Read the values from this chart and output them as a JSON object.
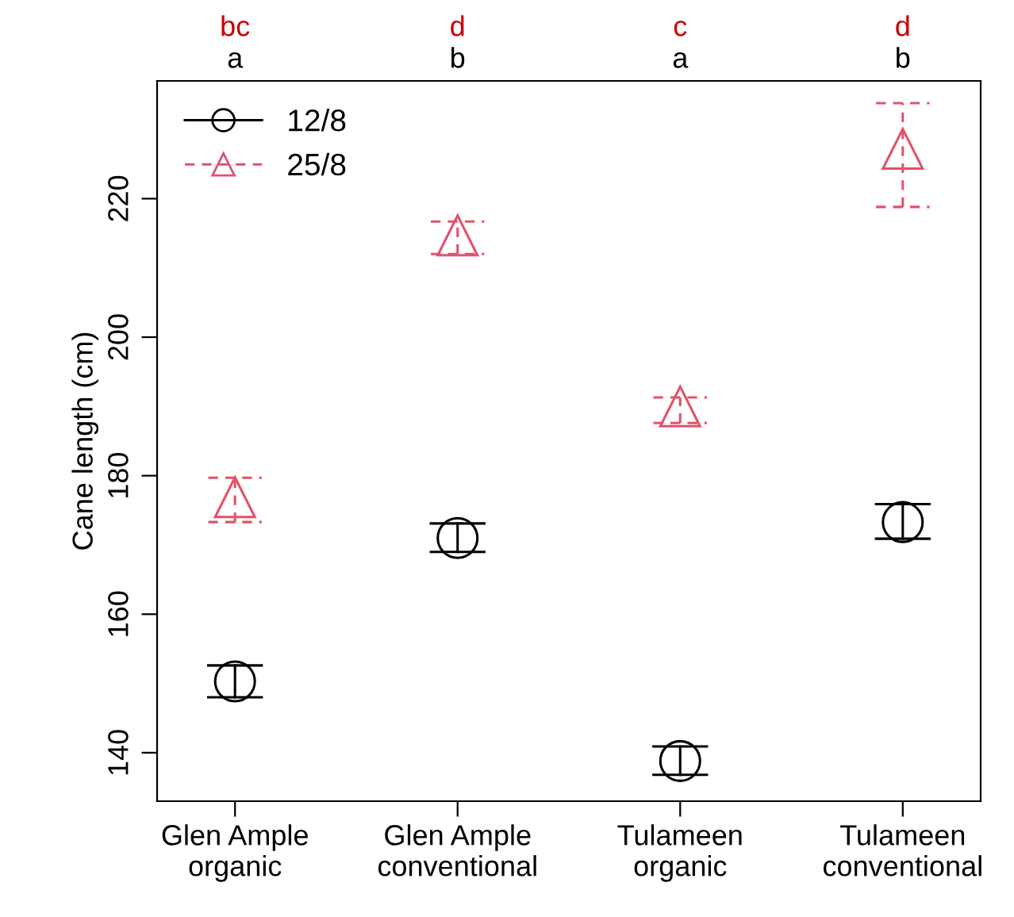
{
  "chart_data": {
    "type": "scatter",
    "ylabel": "Cane length (cm)",
    "categories": [
      "Glen Ample\norganic",
      "Glen Ample\nconventional",
      "Tulameen\norganic",
      "Tulameen\nconventional"
    ],
    "series": [
      {
        "name": "12/8",
        "color": "#000000",
        "marker": "circle",
        "line_style": "solid",
        "values": [
          150.3,
          171.0,
          138.8,
          173.3
        ],
        "errors": [
          [
            148.0,
            152.6
          ],
          [
            169.0,
            173.1
          ],
          [
            136.8,
            140.9
          ],
          [
            170.9,
            175.9
          ]
        ]
      },
      {
        "name": "25/8",
        "color": "#df536b",
        "marker": "triangle",
        "line_style": "dashed",
        "values": [
          176.9,
          214.7,
          190.0,
          227.2
        ],
        "errors": [
          [
            173.3,
            179.7
          ],
          [
            212.0,
            216.7
          ],
          [
            187.6,
            191.3
          ],
          [
            218.8,
            233.8
          ]
        ]
      }
    ],
    "annotations": [
      "bc",
      "d",
      "c",
      "d",
      "a",
      "b",
      "a",
      "b"
    ],
    "ylim": [
      133,
      237
    ],
    "yticks": [
      140,
      160,
      180,
      200,
      220
    ],
    "grid": false,
    "legend": "top left"
  }
}
